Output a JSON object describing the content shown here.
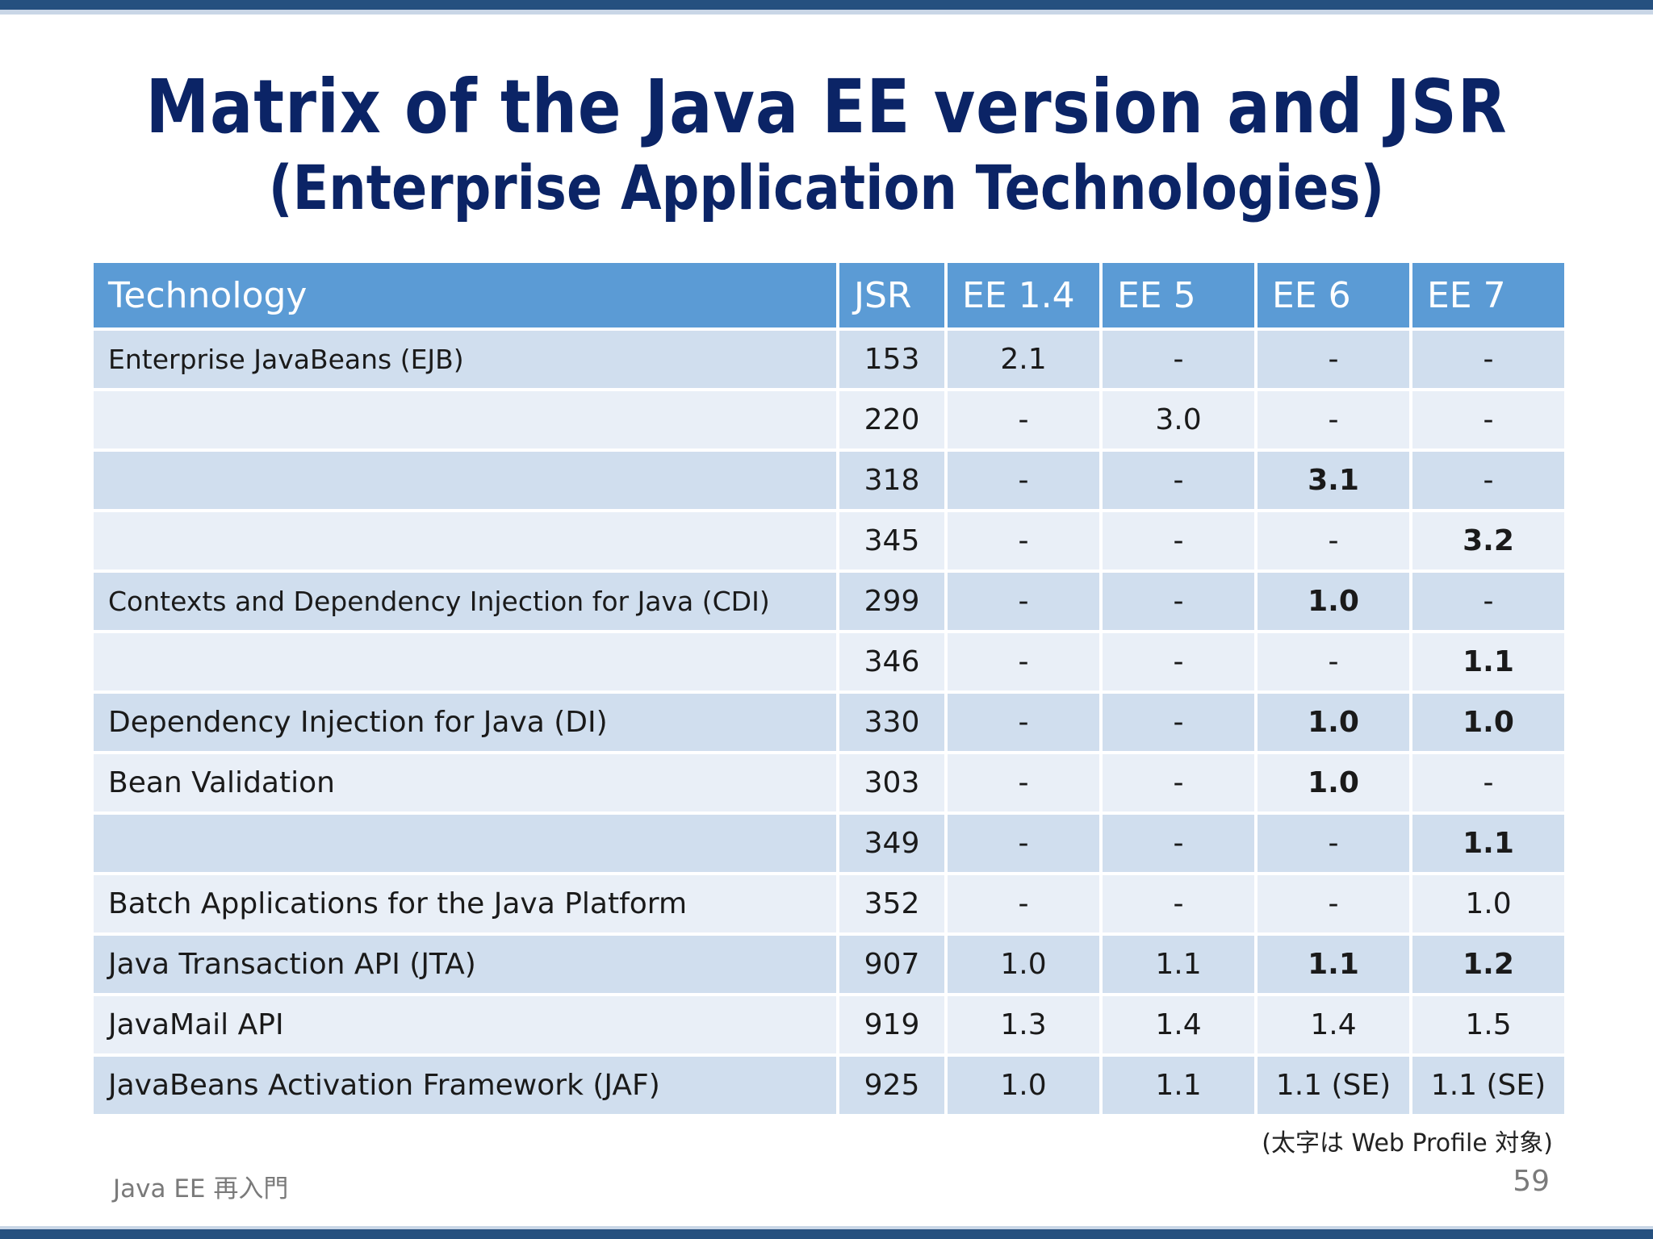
{
  "slide": {
    "title": "Matrix of the Java EE version and JSR",
    "subtitle": "(Enterprise Application Technologies)",
    "note": "(太字は Web Profile 対象)",
    "footer_left": "Java EE 再入門",
    "page_number": "59"
  },
  "colors": {
    "top_bar": "#25507f",
    "title": "#0b2466",
    "header_bg": "#5b9bd5",
    "row_odd": "#d0deee",
    "row_even": "#e9eff7"
  },
  "table": {
    "headers": [
      "Technology",
      "JSR",
      "EE 1.4",
      "EE 5",
      "EE 6",
      "EE 7"
    ],
    "rows": [
      {
        "tech": "Enterprise JavaBeans (EJB)",
        "jsr": "153",
        "ee14": "2.1",
        "ee5": "-",
        "ee6": "-",
        "ee7": "-"
      },
      {
        "tech": "",
        "jsr": "220",
        "ee14": "-",
        "ee5": "3.0",
        "ee6": "-",
        "ee7": "-"
      },
      {
        "tech": "",
        "jsr": "318",
        "ee14": "-",
        "ee5": "-",
        "ee6": "3.1",
        "ee7": "-"
      },
      {
        "tech": "",
        "jsr": "345",
        "ee14": "-",
        "ee5": "-",
        "ee6": "-",
        "ee7": "3.2"
      },
      {
        "tech": "Contexts and Dependency Injection for Java (CDI)",
        "jsr": "299",
        "ee14": "-",
        "ee5": "-",
        "ee6": "1.0",
        "ee7": "-"
      },
      {
        "tech": "",
        "jsr": "346",
        "ee14": "-",
        "ee5": "-",
        "ee6": "-",
        "ee7": "1.1"
      },
      {
        "tech": "Dependency Injection for Java (DI)",
        "jsr": "330",
        "ee14": "-",
        "ee5": "-",
        "ee6": "1.0",
        "ee7": "1.0"
      },
      {
        "tech": "Bean Validation",
        "jsr": "303",
        "ee14": "-",
        "ee5": "-",
        "ee6": "1.0",
        "ee7": "-"
      },
      {
        "tech": "",
        "jsr": "349",
        "ee14": "-",
        "ee5": "-",
        "ee6": "-",
        "ee7": "1.1"
      },
      {
        "tech": "Batch Applications for the Java Platform",
        "jsr": "352",
        "ee14": "-",
        "ee5": "-",
        "ee6": "-",
        "ee7": "1.0"
      },
      {
        "tech": "Java Transaction API (JTA)",
        "jsr": "907",
        "ee14": "1.0",
        "ee5": "1.1",
        "ee6": "1.1",
        "ee7": "1.2"
      },
      {
        "tech": "JavaMail API",
        "jsr": "919",
        "ee14": "1.3",
        "ee5": "1.4",
        "ee6": "1.4",
        "ee7": "1.5"
      },
      {
        "tech": "JavaBeans Activation Framework (JAF)",
        "jsr": "925",
        "ee14": "1.0",
        "ee5": "1.1",
        "ee6": "1.1 (SE)",
        "ee7": "1.1 (SE)"
      }
    ]
  }
}
